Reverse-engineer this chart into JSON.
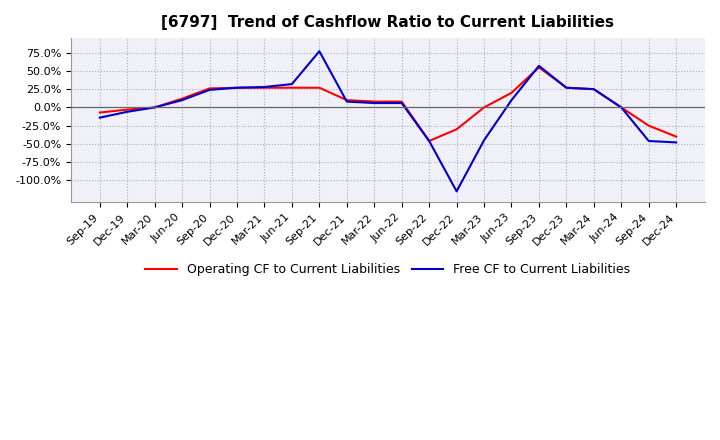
{
  "title": "[6797]  Trend of Cashflow Ratio to Current Liabilities",
  "x_labels": [
    "Sep-19",
    "Dec-19",
    "Mar-20",
    "Jun-20",
    "Sep-20",
    "Dec-20",
    "Mar-21",
    "Jun-21",
    "Sep-21",
    "Dec-21",
    "Mar-22",
    "Jun-22",
    "Sep-22",
    "Dec-22",
    "Mar-23",
    "Jun-23",
    "Sep-23",
    "Dec-23",
    "Mar-24",
    "Jun-24",
    "Sep-24",
    "Dec-24"
  ],
  "operating_cf": [
    -0.07,
    -0.03,
    0.0,
    0.12,
    0.26,
    0.27,
    0.27,
    0.27,
    0.27,
    0.1,
    0.08,
    0.08,
    -0.46,
    -0.3,
    0.0,
    0.2,
    0.55,
    0.27,
    0.25,
    0.0,
    -0.25,
    -0.4
  ],
  "free_cf": [
    -0.14,
    -0.06,
    0.0,
    0.1,
    0.24,
    0.27,
    0.28,
    0.32,
    0.77,
    0.08,
    0.06,
    0.06,
    -0.46,
    -1.15,
    -0.45,
    0.1,
    0.57,
    0.27,
    0.25,
    0.0,
    -0.46,
    -0.48
  ],
  "ylim": [
    -1.3,
    0.95
  ],
  "yticks": [
    -1.0,
    -0.75,
    -0.5,
    -0.25,
    0.0,
    0.25,
    0.5,
    0.75
  ],
  "operating_color": "#ff0000",
  "free_color": "#0000cc",
  "background_color": "#ffffff",
  "plot_bg_color": "#f0f0f8",
  "grid_color": "#aaaacc",
  "title_fontsize": 11,
  "legend_fontsize": 9,
  "tick_fontsize": 8
}
